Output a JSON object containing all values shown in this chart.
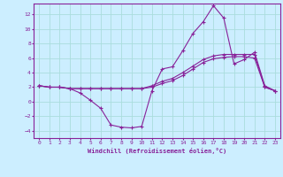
{
  "xlabel": "Windchill (Refroidissement éolien,°C)",
  "background_color": "#cceeff",
  "line_color": "#882299",
  "grid_color": "#aadddd",
  "xlim": [
    -0.5,
    23.5
  ],
  "ylim": [
    -5.0,
    13.5
  ],
  "yticks": [
    -4,
    -2,
    0,
    2,
    4,
    6,
    8,
    10,
    12
  ],
  "xticks": [
    0,
    1,
    2,
    3,
    4,
    5,
    6,
    7,
    8,
    9,
    10,
    11,
    12,
    13,
    14,
    15,
    16,
    17,
    18,
    19,
    20,
    21,
    22,
    23
  ],
  "line1_x": [
    0,
    1,
    2,
    3,
    4,
    5,
    6,
    7,
    8,
    9,
    10,
    11,
    12,
    13,
    14,
    15,
    16,
    17,
    18,
    19,
    20,
    21,
    22,
    23
  ],
  "line1_y": [
    2.2,
    2.0,
    2.0,
    1.8,
    1.2,
    0.2,
    -0.9,
    -3.2,
    -3.5,
    -3.6,
    -3.4,
    1.5,
    4.5,
    4.8,
    7.0,
    9.4,
    11.0,
    13.2,
    11.5,
    5.2,
    5.8,
    6.8,
    2.2,
    1.5
  ],
  "line2_x": [
    0,
    1,
    2,
    3,
    4,
    5,
    6,
    7,
    8,
    9,
    10,
    11,
    12,
    13,
    14,
    15,
    16,
    17,
    18,
    19,
    20,
    21,
    22,
    23
  ],
  "line2_y": [
    2.2,
    2.0,
    2.0,
    1.8,
    1.8,
    1.8,
    1.8,
    1.8,
    1.8,
    1.8,
    1.8,
    2.2,
    2.8,
    3.2,
    4.0,
    4.9,
    5.8,
    6.3,
    6.5,
    6.5,
    6.5,
    6.5,
    2.0,
    1.5
  ],
  "line3_x": [
    0,
    1,
    2,
    3,
    4,
    5,
    6,
    7,
    8,
    9,
    10,
    11,
    12,
    13,
    14,
    15,
    16,
    17,
    18,
    19,
    20,
    21,
    22,
    23
  ],
  "line3_y": [
    2.2,
    2.0,
    2.0,
    1.8,
    1.8,
    1.8,
    1.8,
    1.8,
    1.8,
    1.8,
    1.8,
    2.0,
    2.5,
    2.9,
    3.6,
    4.5,
    5.4,
    5.9,
    6.1,
    6.2,
    6.2,
    6.0,
    2.0,
    1.5
  ]
}
